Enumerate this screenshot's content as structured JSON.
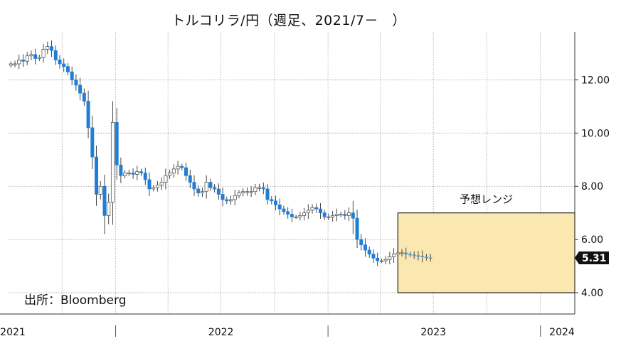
{
  "chart_data": {
    "type": "candlestick",
    "title": "トルコリラ/円（週足、2021/7－　）",
    "source": "出所：Bloomberg",
    "y_axis": {
      "ticks": [
        "4.00",
        "6.00",
        "8.00",
        "10.00",
        "12.00"
      ],
      "tick_values": [
        4,
        6,
        8,
        10,
        12
      ],
      "ylim": [
        3.2,
        13.8
      ],
      "side": "right"
    },
    "x_axis": {
      "tick_labels": [
        "2021",
        "2022",
        "2023",
        "2024"
      ],
      "xlim": [
        "2021-07-01",
        "2024-02-29"
      ]
    },
    "last_price_label": "5.31",
    "last_price": 5.31,
    "forecast_range": {
      "label": "予想レンジ",
      "start": "2023-05",
      "end": "2024-03",
      "low": 4.0,
      "high": 7.0,
      "fill": "#fbe7b0",
      "border": "#222222"
    },
    "colors": {
      "up_candle": "#ffffff",
      "down_candle": "#1f7fd8",
      "wick": "#333333",
      "grid": "#9a9a9a"
    },
    "weekly_close": [
      12.6,
      12.6,
      12.75,
      12.7,
      12.9,
      12.95,
      12.8,
      12.85,
      13.15,
      13.25,
      13.1,
      12.75,
      12.6,
      12.5,
      12.3,
      12.0,
      11.8,
      11.5,
      11.2,
      10.2,
      9.1,
      7.7,
      8.0,
      6.9,
      7.4,
      10.4,
      8.8,
      8.4,
      8.5,
      8.5,
      8.45,
      8.55,
      8.5,
      8.25,
      7.9,
      7.95,
      8.05,
      8.15,
      8.4,
      8.5,
      8.65,
      8.75,
      8.7,
      8.4,
      8.15,
      7.9,
      7.75,
      7.8,
      8.15,
      7.95,
      7.9,
      7.7,
      7.5,
      7.45,
      7.5,
      7.65,
      7.75,
      7.8,
      7.8,
      7.8,
      7.95,
      7.95,
      7.9,
      7.5,
      7.45,
      7.3,
      7.15,
      7.05,
      6.95,
      6.85,
      6.85,
      6.9,
      7.0,
      7.1,
      7.2,
      7.15,
      7.0,
      6.85,
      6.85,
      6.9,
      6.95,
      6.95,
      6.9,
      7.0,
      6.8,
      6.0,
      5.8,
      5.6,
      5.45,
      5.3,
      5.2,
      5.2,
      5.25,
      5.35,
      5.45,
      5.5,
      5.5,
      5.45,
      5.42,
      5.4,
      5.38,
      5.35,
      5.32,
      5.31
    ]
  }
}
